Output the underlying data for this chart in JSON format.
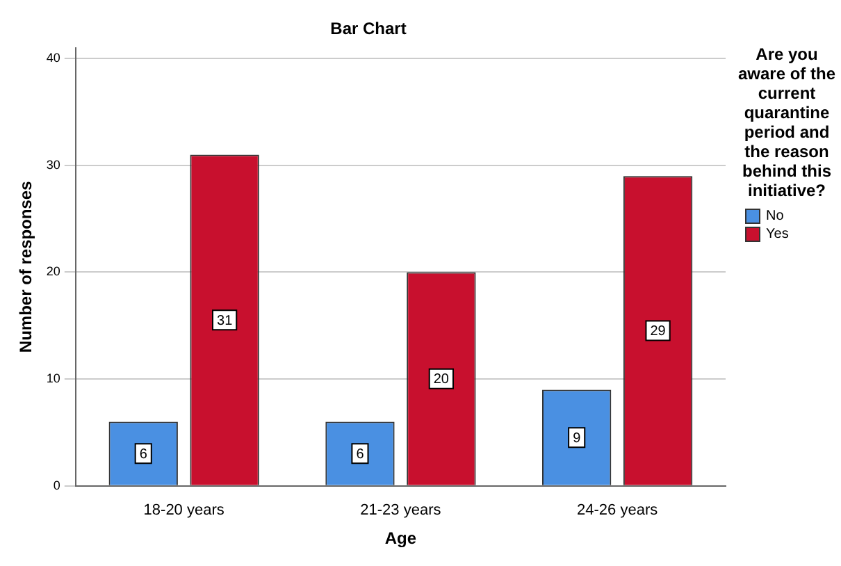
{
  "chart_data": {
    "type": "bar",
    "title": "Bar Chart",
    "xlabel": "Age",
    "ylabel": "Number of responses",
    "legend_title": "Are you aware of the current quarantine period and the reason behind this initiative?",
    "categories": [
      "18-20 years",
      "21-23 years",
      "24-26 years"
    ],
    "series": [
      {
        "name": "No",
        "color": "#4a90e2",
        "values": [
          6,
          6,
          9
        ]
      },
      {
        "name": "Yes",
        "color": "#c8102e",
        "values": [
          31,
          20,
          29
        ]
      }
    ],
    "ylim": [
      0,
      41
    ],
    "yticks": [
      0,
      10,
      20,
      30,
      40
    ],
    "grid": "y",
    "legend": "right",
    "data_labels": true
  }
}
